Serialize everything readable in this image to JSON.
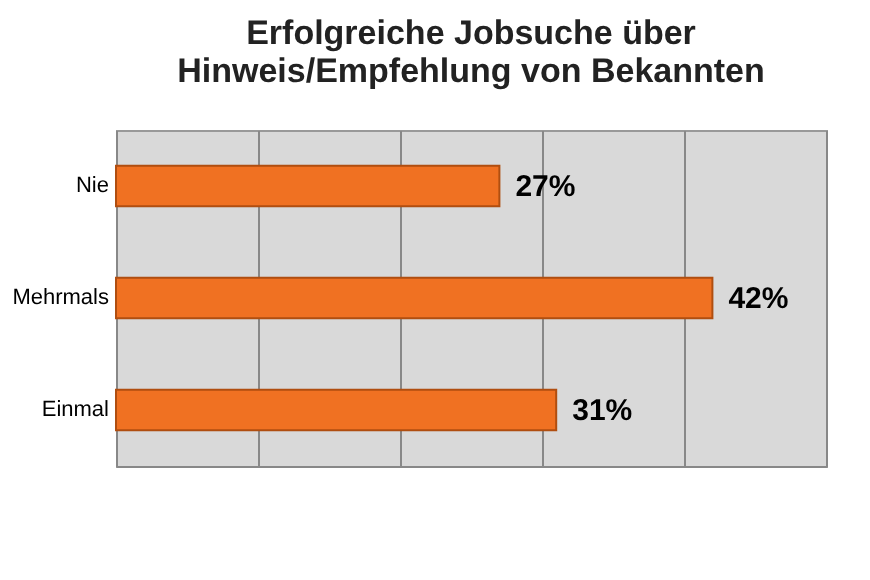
{
  "chart_data": {
    "type": "bar",
    "orientation": "horizontal",
    "title": "Erfolgreiche Jobsuche über\nHinweis/Empfehlung von Bekannten",
    "categories": [
      "Nie",
      "Mehrmals",
      "Einmal"
    ],
    "values": [
      27,
      42,
      31
    ],
    "color": "#f07122",
    "value_labels": [
      "27%",
      "42%",
      "31%"
    ],
    "xlim": [
      0,
      50
    ],
    "xticks": [
      {
        "value": 0,
        "label": null
      },
      {
        "value": 10,
        "label": null
      },
      {
        "value": 20,
        "label": null
      },
      {
        "value": 30,
        "label": null
      },
      {
        "value": 40,
        "label": null
      },
      {
        "value": 50,
        "label": null
      }
    ],
    "grid": "x",
    "tick_labels": "y"
  }
}
